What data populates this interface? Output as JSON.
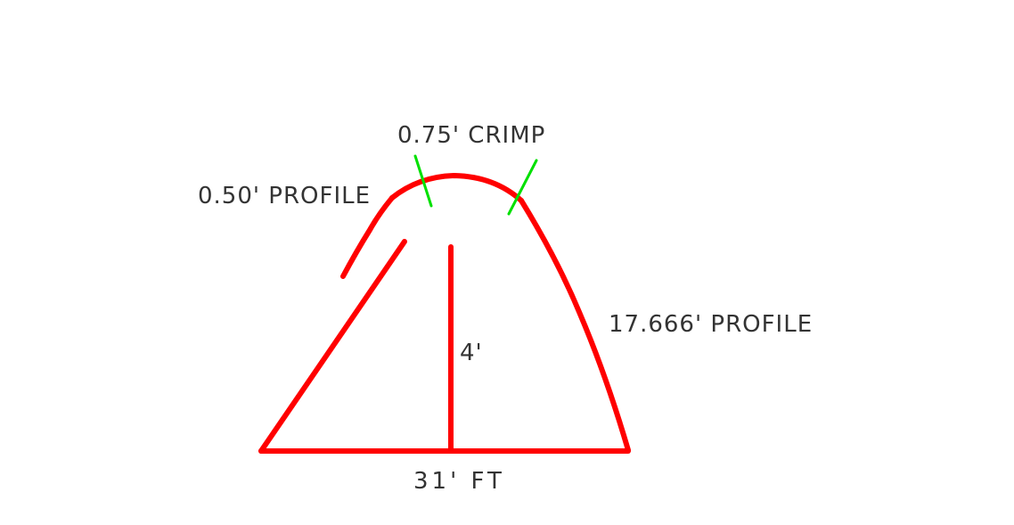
{
  "labels": {
    "crimp": "0.75' CRIMP",
    "left_profile": "0.50' PROFILE",
    "right_profile": "17.666' PROFILE",
    "height": "4'",
    "base": "31' FT"
  },
  "colors": {
    "profile_lines": "#ff0000",
    "crimp_marks": "#00e000",
    "text": "#333333",
    "background": "#ffffff"
  }
}
